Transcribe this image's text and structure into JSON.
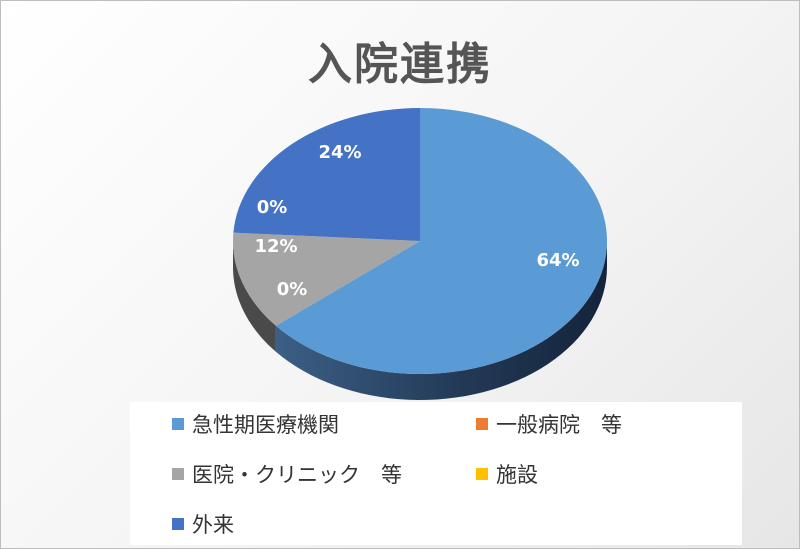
{
  "chart_data": {
    "type": "pie",
    "title": "入院連携",
    "categories": [
      "急性期医療機関",
      "一般病院　等",
      "医院・クリニック　等",
      "施設",
      "外来"
    ],
    "values": [
      64,
      0,
      12,
      0,
      24
    ],
    "data_labels": [
      "64%",
      "0%",
      "12%",
      "0%",
      "24%"
    ],
    "colors": [
      "#5b9bd5",
      "#ed7d31",
      "#a5a5a5",
      "#ffc000",
      "#4472c4"
    ],
    "legend_position": "bottom"
  }
}
